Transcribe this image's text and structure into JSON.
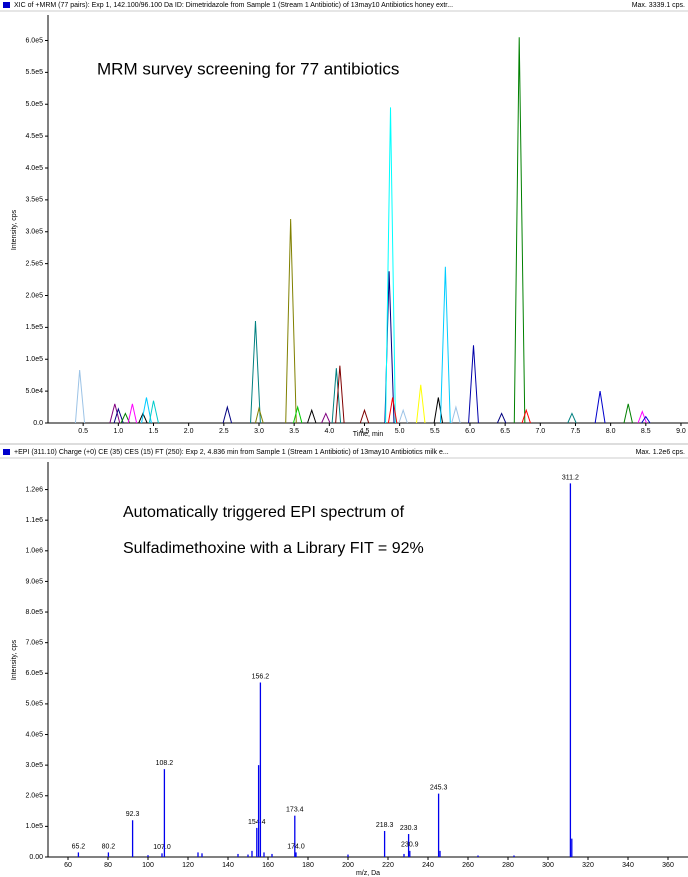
{
  "chart_data": [
    {
      "type": "line",
      "header": "XIC of +MRM (77 pairs): Exp 1, 142.100/96.100 Da ID: Dimetridazole from Sample 1 (Stream 1 Antibiotic) of 13may10 Antibiotics honey extr...",
      "header_right": "Max. 3339.1 cps.",
      "annotations": [
        "MRM survey screening for 77 antibiotics"
      ],
      "x_label": "Time, min",
      "y_label": "Intensity, cps",
      "xlim": [
        0,
        9.1
      ],
      "ylim": [
        0,
        640000
      ],
      "xticks": [
        0.5,
        {
          "value": 1,
          "label": "1.0"
        },
        1.5,
        {
          "value": 2,
          "label": "2.0"
        },
        2.5,
        {
          "value": 3,
          "label": "3.0"
        },
        3.5,
        {
          "value": 4,
          "label": "4.0"
        },
        4.5,
        {
          "value": 5,
          "label": "5.0"
        },
        5.5,
        {
          "value": 6,
          "label": "6.0"
        },
        6.5,
        {
          "value": 7,
          "label": "7.0"
        },
        7.5,
        {
          "value": 8,
          "label": "8.0"
        },
        8.5,
        {
          "value": 9,
          "label": "9.0"
        }
      ],
      "yticks": [
        {
          "value": 0,
          "label": "0.0"
        },
        {
          "value": 50000,
          "label": "5.0e4"
        },
        {
          "value": 100000,
          "label": "1.0e5"
        },
        {
          "value": 150000,
          "label": "1.5e5"
        },
        {
          "value": 200000,
          "label": "2.0e5"
        },
        {
          "value": 250000,
          "label": "2.5e5"
        },
        {
          "value": 300000,
          "label": "3.0e5"
        },
        {
          "value": 350000,
          "label": "3.5e5"
        },
        {
          "value": 400000,
          "label": "4.0e5"
        },
        {
          "value": 450000,
          "label": "4.5e5"
        },
        {
          "value": 500000,
          "label": "5.0e5"
        },
        {
          "value": 550000,
          "label": "5.5e5"
        },
        {
          "value": 600000,
          "label": "6.0e5"
        }
      ],
      "series": [
        {
          "color": "#9cc3e6",
          "x": [
            0.39,
            0.45,
            0.52
          ],
          "values": [
            0,
            83000,
            0
          ]
        },
        {
          "color": "#800080",
          "x": [
            0.88,
            0.95,
            1.02
          ],
          "values": [
            0,
            30000,
            0
          ]
        },
        {
          "color": "#000080",
          "x": [
            0.94,
            1.0,
            1.07
          ],
          "values": [
            0,
            22000,
            0
          ]
        },
        {
          "color": "#008000",
          "x": [
            1.04,
            1.1,
            1.16
          ],
          "values": [
            0,
            15000,
            0
          ]
        },
        {
          "color": "#ff00ff",
          "x": [
            1.14,
            1.2,
            1.26
          ],
          "values": [
            0,
            30000,
            0
          ]
        },
        {
          "color": "#000000",
          "x": [
            1.29,
            1.35,
            1.41
          ],
          "values": [
            0,
            15000,
            0
          ]
        },
        {
          "color": "#00ccff",
          "x": [
            1.33,
            1.4,
            1.47
          ],
          "values": [
            0,
            40000,
            0
          ]
        },
        {
          "color": "#00cccc",
          "x": [
            1.44,
            1.5,
            1.57
          ],
          "values": [
            0,
            35000,
            0
          ]
        },
        {
          "color": "#000080",
          "x": [
            2.49,
            2.55,
            2.61
          ],
          "values": [
            0,
            25000,
            0
          ]
        },
        {
          "color": "#008080",
          "x": [
            2.88,
            2.95,
            3.02
          ],
          "values": [
            0,
            160000,
            0
          ]
        },
        {
          "color": "#808000",
          "x": [
            2.95,
            3.0,
            3.06
          ],
          "values": [
            0,
            23000,
            0
          ]
        },
        {
          "color": "#808000",
          "x": [
            3.38,
            3.45,
            3.53
          ],
          "values": [
            0,
            320000,
            0
          ]
        },
        {
          "color": "#00cc00",
          "x": [
            3.49,
            3.55,
            3.61
          ],
          "values": [
            0,
            25000,
            0
          ]
        },
        {
          "color": "#000000",
          "x": [
            3.69,
            3.75,
            3.81
          ],
          "values": [
            0,
            20000,
            0
          ]
        },
        {
          "color": "#800080",
          "x": [
            3.89,
            3.95,
            4.01
          ],
          "values": [
            0,
            15000,
            0
          ]
        },
        {
          "color": "#008080",
          "x": [
            4.04,
            4.1,
            4.16
          ],
          "values": [
            0,
            86000,
            0
          ]
        },
        {
          "color": "#800000",
          "x": [
            4.09,
            4.15,
            4.21
          ],
          "values": [
            0,
            90000,
            0
          ]
        },
        {
          "color": "#800000",
          "x": [
            4.44,
            4.5,
            4.56
          ],
          "values": [
            0,
            20000,
            0
          ]
        },
        {
          "color": "#000080",
          "x": [
            4.79,
            4.85,
            4.92
          ],
          "values": [
            0,
            238000,
            0
          ]
        },
        {
          "color": "#00ffff",
          "x": [
            4.8,
            4.87,
            4.94
          ],
          "values": [
            0,
            495000,
            0
          ]
        },
        {
          "color": "#ff0000",
          "x": [
            4.84,
            4.9,
            4.96
          ],
          "values": [
            0,
            40000,
            0
          ]
        },
        {
          "color": "#9cc3e6",
          "x": [
            4.99,
            5.05,
            5.11
          ],
          "values": [
            0,
            20000,
            0
          ]
        },
        {
          "color": "#ffff00",
          "x": [
            5.24,
            5.3,
            5.36
          ],
          "values": [
            0,
            60000,
            0
          ]
        },
        {
          "color": "#000000",
          "x": [
            5.49,
            5.55,
            5.61
          ],
          "values": [
            0,
            40000,
            0
          ]
        },
        {
          "color": "#00ccff",
          "x": [
            5.58,
            5.65,
            5.72
          ],
          "values": [
            0,
            245000,
            0
          ]
        },
        {
          "color": "#9cc3e6",
          "x": [
            5.74,
            5.8,
            5.86
          ],
          "values": [
            0,
            25000,
            0
          ]
        },
        {
          "color": "#0000aa",
          "x": [
            5.98,
            6.05,
            6.12
          ],
          "values": [
            0,
            122000,
            0
          ]
        },
        {
          "color": "#000080",
          "x": [
            6.39,
            6.45,
            6.51
          ],
          "values": [
            0,
            15000,
            0
          ]
        },
        {
          "color": "#008000",
          "x": [
            6.63,
            6.7,
            6.78
          ],
          "values": [
            0,
            605000,
            0
          ]
        },
        {
          "color": "#ff0000",
          "x": [
            6.74,
            6.8,
            6.86
          ],
          "values": [
            0,
            20000,
            0
          ]
        },
        {
          "color": "#008080",
          "x": [
            7.39,
            7.45,
            7.51
          ],
          "values": [
            0,
            15000,
            0
          ]
        },
        {
          "color": "#0000cc",
          "x": [
            7.78,
            7.85,
            7.92
          ],
          "values": [
            0,
            50000,
            0
          ]
        },
        {
          "color": "#008000",
          "x": [
            8.19,
            8.25,
            8.31
          ],
          "values": [
            0,
            30000,
            0
          ]
        },
        {
          "color": "#ff00ff",
          "x": [
            8.39,
            8.45,
            8.51
          ],
          "values": [
            0,
            18000,
            0
          ]
        },
        {
          "color": "#0000cc",
          "x": [
            8.44,
            8.5,
            8.56
          ],
          "values": [
            0,
            10000,
            0
          ]
        }
      ]
    },
    {
      "type": "stem",
      "header": "+EPI (311.10) Charge (+0) CE (35) CES (15) FT (250): Exp 2, 4.836 min from Sample 1 (Stream 1 Antibiotic) of 13may10 Antibiotics milk e...",
      "header_right": "Max. 1.2e6 cps.",
      "annotations": [
        "Automatically triggered EPI spectrum of",
        "Sulfadimethoxine with a Library FIT = 92%"
      ],
      "x_label": "m/z, Da",
      "y_label": "Intensity, cps",
      "xlim": [
        50,
        370
      ],
      "ylim": [
        0,
        1290000
      ],
      "xticks": [
        60,
        80,
        100,
        120,
        140,
        160,
        180,
        200,
        220,
        240,
        260,
        280,
        300,
        320,
        340,
        360
      ],
      "yticks": [
        {
          "value": 0,
          "label": "0.00"
        },
        {
          "value": 100000,
          "label": "1.0e5"
        },
        {
          "value": 200000,
          "label": "2.0e5"
        },
        {
          "value": 300000,
          "label": "3.0e5"
        },
        {
          "value": 400000,
          "label": "4.0e5"
        },
        {
          "value": 500000,
          "label": "5.0e5"
        },
        {
          "value": 600000,
          "label": "6.0e5"
        },
        {
          "value": 700000,
          "label": "7.0e5"
        },
        {
          "value": 800000,
          "label": "8.0e5"
        },
        {
          "value": 900000,
          "label": "9.0e5"
        },
        {
          "value": 1000000,
          "label": "1.0e6"
        },
        {
          "value": 1100000,
          "label": "1.1e6"
        },
        {
          "value": 1200000,
          "label": "1.2e6"
        }
      ],
      "series": [
        {
          "color": "#0000ee",
          "show_labels": true,
          "x": [
            65.2,
            80.2,
            92.3,
            107.0,
            108.2,
            154.4,
            156.2,
            173.4,
            174.0,
            218.3,
            230.3,
            230.9,
            245.3,
            311.2
          ],
          "x_labels": [
            "65.2",
            "80.2",
            "92.3",
            "107.0",
            "108.2",
            "154.4",
            "156.2",
            "173.4",
            "174.0",
            "218.3",
            "230.3",
            "230.9",
            "245.3",
            "311.2"
          ],
          "values": [
            15000,
            15000,
            120000,
            12000,
            287000,
            95000,
            570000,
            135000,
            15000,
            85000,
            75000,
            20000,
            207000,
            1220000
          ]
        },
        {
          "color": "#0000ee",
          "show_labels": false,
          "x": [
            100,
            125,
            127,
            145,
            150,
            152,
            155.3,
            158,
            162,
            200,
            228,
            246,
            265,
            283,
            311.9
          ],
          "values": [
            6000,
            15000,
            12000,
            10000,
            8000,
            20000,
            300000,
            15000,
            10000,
            8000,
            10000,
            20000,
            5000,
            5000,
            60000
          ]
        }
      ]
    }
  ]
}
